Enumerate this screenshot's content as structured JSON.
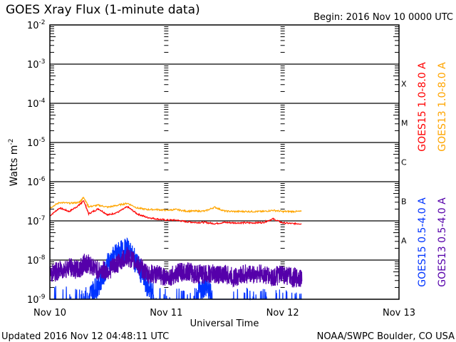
{
  "chart_data": {
    "type": "line",
    "title": "GOES Xray Flux (1-minute data)",
    "begin_label": "Begin:  2016 Nov 10 0000 UTC",
    "xlabel": "Universal Time",
    "ylabel": "Watts m",
    "ylabel_sup": "-2",
    "y_scale": "log",
    "ylim_log10": [
      -9,
      -2
    ],
    "y_ticks": [
      {
        "base": "10",
        "exp": "-2"
      },
      {
        "base": "10",
        "exp": "-3"
      },
      {
        "base": "10",
        "exp": "-4"
      },
      {
        "base": "10",
        "exp": "-5"
      },
      {
        "base": "10",
        "exp": "-6"
      },
      {
        "base": "10",
        "exp": "-7"
      },
      {
        "base": "10",
        "exp": "-8"
      },
      {
        "base": "10",
        "exp": "-9"
      }
    ],
    "xlim_hours": [
      0,
      72
    ],
    "x_ticks": [
      {
        "label": "Nov 10",
        "hour": 0
      },
      {
        "label": "Nov 11",
        "hour": 24
      },
      {
        "label": "Nov 12",
        "hour": 48
      },
      {
        "label": "Nov 13",
        "hour": 72
      }
    ],
    "flare_classes": [
      {
        "label": "X",
        "log10": -3.5
      },
      {
        "label": "M",
        "log10": -4.5
      },
      {
        "label": "C",
        "log10": -5.5
      },
      {
        "label": "B",
        "log10": -6.5
      },
      {
        "label": "A",
        "log10": -7.5
      }
    ],
    "x_hours": [
      0,
      2,
      4,
      6,
      7,
      8,
      10,
      12,
      14,
      16,
      18,
      20,
      22,
      24,
      26,
      28,
      30,
      32,
      34,
      36,
      38,
      40,
      42,
      44,
      46,
      48,
      50,
      52
    ],
    "series": [
      {
        "name": "GOES15 1.0-8.0 A",
        "color": "#ff0000",
        "noise": 0.02,
        "values_log10": [
          -6.87,
          -6.67,
          -6.76,
          -6.6,
          -6.49,
          -6.82,
          -6.69,
          -6.85,
          -6.78,
          -6.64,
          -6.82,
          -6.91,
          -6.95,
          -6.98,
          -6.98,
          -7.02,
          -7.04,
          -7.04,
          -7.07,
          -7.04,
          -7.05,
          -7.05,
          -7.05,
          -7.04,
          -6.95,
          -7.05,
          -7.07,
          -7.07
        ]
      },
      {
        "name": "GOES13 1.0-8.0 A",
        "color": "#ffa500",
        "noise": 0.02,
        "values_log10": [
          -6.67,
          -6.53,
          -6.55,
          -6.53,
          -6.4,
          -6.64,
          -6.6,
          -6.65,
          -6.6,
          -6.55,
          -6.67,
          -6.71,
          -6.71,
          -6.73,
          -6.71,
          -6.75,
          -6.75,
          -6.75,
          -6.65,
          -6.75,
          -6.76,
          -6.76,
          -6.76,
          -6.76,
          -6.73,
          -6.76,
          -6.76,
          -6.76
        ]
      },
      {
        "name": "GOES15 0.5-4.0 A",
        "color": "#0033ff",
        "noise": 0.3,
        "values_log10": [
          -9,
          -8.91,
          -9,
          -9,
          -9,
          -8.91,
          -8.64,
          -8.09,
          -7.82,
          -7.73,
          -8.09,
          -8.64,
          -9,
          -9,
          -9,
          -9,
          -9,
          -8.64,
          -9,
          -9,
          -9,
          -9,
          -9,
          -9,
          -9,
          -9,
          -9,
          -9
        ]
      },
      {
        "name": "GOES13 0.5-4.0 A",
        "color": "#5500aa",
        "noise": 0.25,
        "values_log10": [
          -8.36,
          -8.27,
          -8.18,
          -8.27,
          -8.09,
          -8.09,
          -8.27,
          -8.27,
          -8.09,
          -7.91,
          -8.09,
          -8.36,
          -8.36,
          -8.45,
          -8.36,
          -8.27,
          -8.36,
          -8.36,
          -8.36,
          -8.36,
          -8.45,
          -8.36,
          -8.36,
          -8.36,
          -8.45,
          -8.36,
          -8.45,
          -8.45
        ]
      }
    ]
  },
  "footer": {
    "updated": "Updated 2016 Nov 12 04:48:11 UTC",
    "credit": "NOAA/SWPC Boulder, CO USA"
  }
}
